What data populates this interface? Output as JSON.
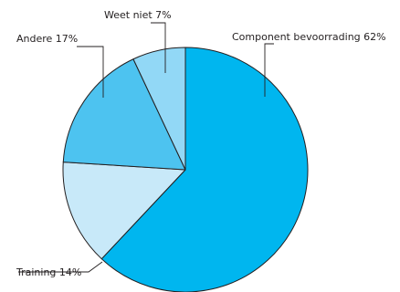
{
  "chart_data": {
    "type": "pie",
    "start_angle_deg": 0,
    "direction": "clockwise",
    "slices": [
      {
        "label": "Component bevoorrading 62%",
        "value": 62,
        "color": "#00b6ef"
      },
      {
        "label": "Training 14%",
        "value": 14,
        "color": "#c8e9f9"
      },
      {
        "label": "Andere 17%",
        "value": 17,
        "color": "#4dc3f0"
      },
      {
        "label": "Weet niet 7%",
        "value": 7,
        "color": "#92d8f6"
      }
    ]
  }
}
